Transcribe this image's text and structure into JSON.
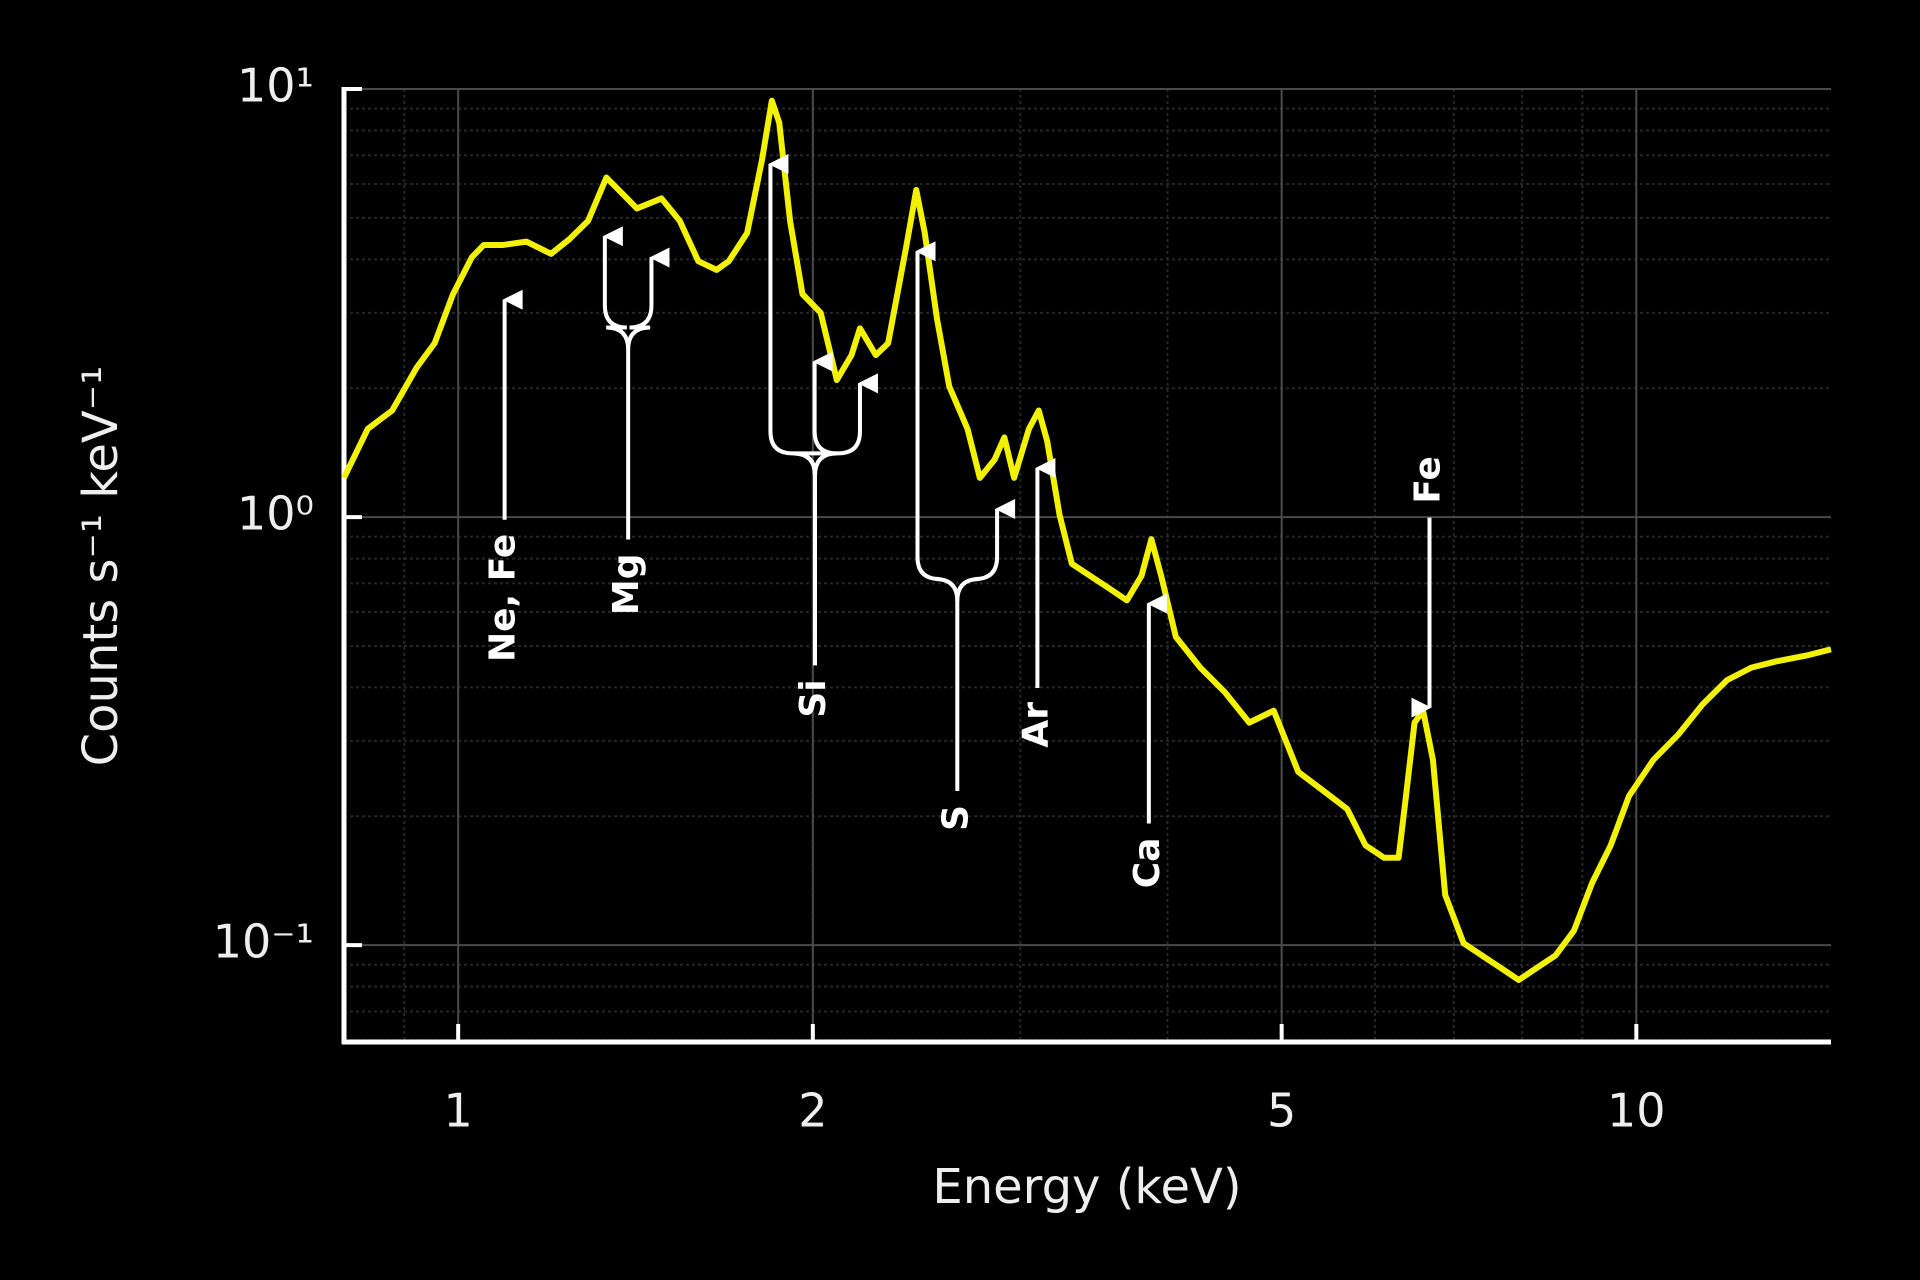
{
  "chart_data": {
    "type": "line",
    "x_label": "Energy (keV)",
    "y_label": "Counts s⁻¹ keV⁻¹",
    "x_scale": "log",
    "y_scale": "log",
    "grid": true,
    "minor_grid": true,
    "color": "#f2f200",
    "xlim": [
      0.8,
      14.63
    ],
    "ylim": [
      0.0594,
      10
    ],
    "xticks": [
      1,
      2,
      5,
      10
    ],
    "yticks": [
      {
        "value": 0.1,
        "label": "10⁻¹"
      },
      {
        "value": 1,
        "label": "10⁰"
      },
      {
        "value": 10,
        "label": "10¹"
      }
    ],
    "x": [
      0.8,
      0.838,
      0.879,
      0.922,
      0.955,
      0.99,
      1.027,
      1.051,
      1.09,
      1.143,
      1.199,
      1.243,
      1.289,
      1.336,
      1.385,
      1.418,
      1.488,
      1.542,
      1.599,
      1.657,
      1.697,
      1.759,
      1.811,
      1.846,
      1.873,
      1.913,
      1.96,
      2.031,
      2.096,
      2.157,
      2.193,
      2.262,
      2.317,
      2.402,
      2.448,
      2.489,
      2.549,
      2.611,
      2.706,
      2.772,
      2.853,
      2.908,
      2.964,
      3.051,
      3.11,
      3.162,
      3.239,
      3.318,
      3.439,
      3.565,
      3.695,
      3.802,
      3.876,
      3.951,
      4.066,
      4.265,
      4.474,
      4.693,
      4.923,
      5.165,
      5.418,
      5.683,
      5.891,
      6.107,
      6.284,
      6.375,
      6.483,
      6.592,
      6.72,
      6.883,
      7.135,
      7.396,
      7.666,
      7.947,
      8.238,
      8.539,
      8.851,
      9.175,
      9.511,
      9.858,
      10.34,
      10.85,
      11.38,
      11.94,
      12.52,
      13.14,
      13.95,
      14.63
    ],
    "values": [
      1.235,
      1.607,
      1.774,
      2.234,
      2.547,
      3.318,
      4.043,
      4.32,
      4.32,
      4.4,
      4.12,
      4.46,
      4.92,
      6.21,
      5.62,
      5.26,
      5.55,
      4.92,
      3.96,
      3.78,
      3.96,
      4.61,
      6.84,
      9.39,
      8.34,
      4.92,
      3.318,
      3.0,
      2.09,
      2.39,
      2.76,
      2.39,
      2.547,
      4.32,
      5.81,
      4.61,
      2.91,
      2.02,
      1.607,
      1.235,
      1.362,
      1.535,
      1.235,
      1.607,
      1.774,
      1.504,
      1.013,
      0.778,
      0.729,
      0.683,
      0.639,
      0.729,
      0.888,
      0.729,
      0.525,
      0.445,
      0.39,
      0.331,
      0.353,
      0.254,
      0.23,
      0.208,
      0.171,
      0.16,
      0.16,
      0.223,
      0.331,
      0.353,
      0.271,
      0.131,
      0.101,
      0.0946,
      0.0886,
      0.0829,
      0.0886,
      0.0946,
      0.108,
      0.14,
      0.171,
      0.223,
      0.271,
      0.31,
      0.365,
      0.416,
      0.445,
      0.46,
      0.475,
      0.491
    ],
    "annotations": [
      {
        "text": "Ne, Fe",
        "x": [
          1.095
        ],
        "arrow": "up"
      },
      {
        "text": "Mg",
        "x": [
          1.332,
          1.459
        ],
        "arrow": "up"
      },
      {
        "text": "Si",
        "x": [
          1.841,
          2.007,
          2.193
        ],
        "arrow": "up"
      },
      {
        "text": "S",
        "x": [
          2.454,
          2.867
        ],
        "arrow": "up"
      },
      {
        "text": "Ar",
        "x": [
          3.102
        ],
        "arrow": "up"
      },
      {
        "text": "Ca",
        "x": [
          3.857
        ],
        "arrow": "up"
      },
      {
        "text": "Fe",
        "x": [
          6.675
        ],
        "arrow": "down"
      }
    ]
  }
}
